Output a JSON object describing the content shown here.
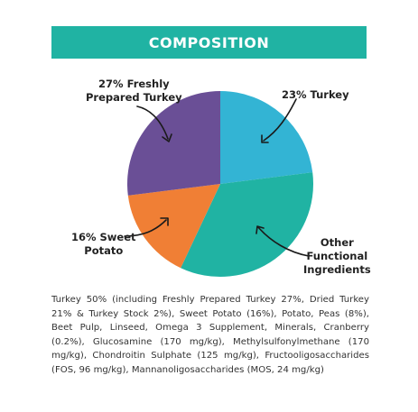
{
  "header": {
    "title": "COMPOSITION"
  },
  "chart_data": {
    "type": "pie",
    "slices": [
      {
        "label": "23% Turkey",
        "value": 23,
        "color": "#33b4d4"
      },
      {
        "label": "Other Functional Ingredients",
        "value": 34,
        "color": "#20b3a3"
      },
      {
        "label": "16% Sweet Potato",
        "value": 16,
        "color": "#f07f35"
      },
      {
        "label": "27% Freshly Prepared Turkey",
        "value": 27,
        "color": "#6a4f96"
      }
    ]
  },
  "labels": {
    "freshly_line1": "27% Freshly",
    "freshly_line2": "Prepared Turkey",
    "turkey": "23% Turkey",
    "sweet_line1": "16% Sweet",
    "sweet_line2": "Potato",
    "other_line1": "Other",
    "other_line2": "Functional",
    "other_line3": "Ingredients"
  },
  "composition_text": "Turkey 50% (including Freshly Prepared Turkey 27%, Dried Turkey 21% & Turkey Stock 2%), Sweet Potato (16%), Potato, Peas (8%), Beet Pulp, Linseed, Omega 3 Supplement, Minerals, Cranberry (0.2%), Glucosamine (170 mg/kg), Methylsulfonylmethane (170 mg/kg), Chondroitin Sulphate (125 mg/kg), Fructooligosaccharides (FOS, 96 mg/kg), Mannanoligosaccharides (MOS, 24 mg/kg)"
}
